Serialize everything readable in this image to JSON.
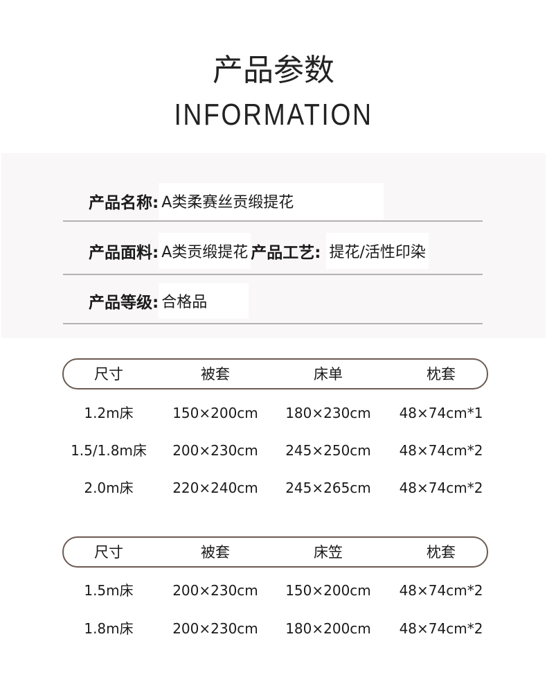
{
  "header": {
    "title": "产品参数",
    "subtitle": "INFORMATION"
  },
  "info": {
    "name_label": "产品名称:",
    "name_value": "A类柔赛丝贡缎提花",
    "fabric_label": "产品面料:",
    "fabric_value": "A类贡缎提花",
    "craft_label": "产品工艺:",
    "craft_value": "提花/活性印染",
    "grade_label": "产品等级:",
    "grade_value": "合格品"
  },
  "table1": {
    "headers": [
      "尺寸",
      "被套",
      "床单",
      "枕套"
    ],
    "rows": [
      [
        "1.2m床",
        "150×200cm",
        "180×230cm",
        "48×74cm*1"
      ],
      [
        "1.5/1.8m床",
        "200×230cm",
        "245×250cm",
        "48×74cm*2"
      ],
      [
        "2.0m床",
        "220×240cm",
        "245×265cm",
        "48×74cm*2"
      ]
    ]
  },
  "table2": {
    "headers": [
      "尺寸",
      "被套",
      "床笠",
      "枕套"
    ],
    "rows": [
      [
        "1.5m床",
        "200×230cm",
        "150×200cm",
        "48×74cm*2"
      ],
      [
        "1.8m床",
        "200×230cm",
        "180×200cm",
        "48×74cm*2"
      ]
    ]
  },
  "colors": {
    "pill_border": "#6b5a52",
    "panel_bg": "#f9f7f8",
    "divider": "#b3b3b3"
  }
}
